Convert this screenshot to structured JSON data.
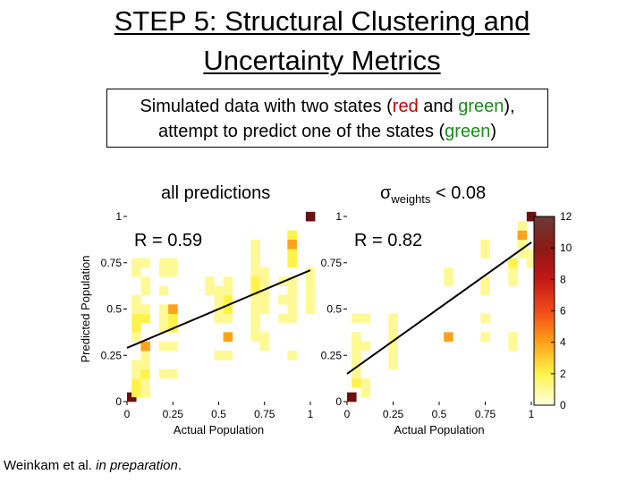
{
  "slide": {
    "title_line1": "STEP 5: Structural Clustering and",
    "title_line2": "Uncertainty Metrics",
    "subtitle": {
      "l1_a": "Simulated data with two states (",
      "l1_red": "red",
      "l1_b": " and ",
      "l1_green": "green",
      "l1_c": "),",
      "l2_a": "attempt to predict one of the states (",
      "l2_green": "green",
      "l2_b": ")"
    },
    "left_panel_title": "all predictions",
    "right_panel_title_sigma": "σ",
    "right_panel_title_sub": "weights",
    "right_panel_title_rest": " < 0.08",
    "citation_a": "Weinkam et al. ",
    "citation_b": "in preparation",
    "citation_c": "."
  },
  "colors": {
    "red": "#c00000",
    "green": "#1a8c1a"
  },
  "chart_data": [
    {
      "type": "heatmap",
      "title": "all predictions",
      "xlabel": "Actual Population",
      "ylabel": "Predicted Population",
      "xlim": [
        0,
        1
      ],
      "ylim": [
        0,
        1
      ],
      "xticks": [
        "0",
        "0.25",
        "0.5",
        "0.75",
        "1"
      ],
      "yticks": [
        "0",
        "0.25",
        "0.5",
        "0.75",
        "1"
      ],
      "annotation": "R = 0.59",
      "fit_line": {
        "x": [
          0,
          1
        ],
        "y": [
          0.29,
          0.71
        ]
      },
      "cells": [
        {
          "x": 0.0,
          "y": 0.0,
          "v": 12
        },
        {
          "x": 0.975,
          "y": 0.975,
          "v": 12
        },
        {
          "x": 0.025,
          "y": 0.025,
          "v": 2
        },
        {
          "x": 0.025,
          "y": 0.075,
          "v": 2
        },
        {
          "x": 0.025,
          "y": 0.125,
          "v": 1
        },
        {
          "x": 0.025,
          "y": 0.175,
          "v": 1
        },
        {
          "x": 0.025,
          "y": 0.325,
          "v": 1
        },
        {
          "x": 0.025,
          "y": 0.375,
          "v": 2
        },
        {
          "x": 0.025,
          "y": 0.425,
          "v": 2
        },
        {
          "x": 0.025,
          "y": 0.475,
          "v": 1
        },
        {
          "x": 0.025,
          "y": 0.525,
          "v": 1
        },
        {
          "x": 0.025,
          "y": 0.675,
          "v": 1
        },
        {
          "x": 0.025,
          "y": 0.725,
          "v": 1
        },
        {
          "x": 0.075,
          "y": 0.025,
          "v": 1
        },
        {
          "x": 0.075,
          "y": 0.075,
          "v": 1
        },
        {
          "x": 0.075,
          "y": 0.125,
          "v": 2
        },
        {
          "x": 0.075,
          "y": 0.175,
          "v": 1
        },
        {
          "x": 0.075,
          "y": 0.425,
          "v": 2
        },
        {
          "x": 0.075,
          "y": 0.475,
          "v": 1
        },
        {
          "x": 0.075,
          "y": 0.575,
          "v": 1
        },
        {
          "x": 0.075,
          "y": 0.625,
          "v": 1
        },
        {
          "x": 0.075,
          "y": 0.725,
          "v": 1
        },
        {
          "x": 0.075,
          "y": 0.225,
          "v": 1
        },
        {
          "x": 0.075,
          "y": 0.275,
          "v": 4
        },
        {
          "x": 0.175,
          "y": 0.125,
          "v": 1
        },
        {
          "x": 0.175,
          "y": 0.275,
          "v": 1
        },
        {
          "x": 0.175,
          "y": 0.375,
          "v": 1
        },
        {
          "x": 0.175,
          "y": 0.425,
          "v": 1
        },
        {
          "x": 0.175,
          "y": 0.475,
          "v": 1
        },
        {
          "x": 0.175,
          "y": 0.575,
          "v": 1
        },
        {
          "x": 0.175,
          "y": 0.675,
          "v": 1
        },
        {
          "x": 0.175,
          "y": 0.725,
          "v": 1
        },
        {
          "x": 0.225,
          "y": 0.125,
          "v": 1
        },
        {
          "x": 0.225,
          "y": 0.275,
          "v": 1
        },
        {
          "x": 0.225,
          "y": 0.375,
          "v": 2
        },
        {
          "x": 0.225,
          "y": 0.425,
          "v": 2
        },
        {
          "x": 0.225,
          "y": 0.675,
          "v": 1
        },
        {
          "x": 0.225,
          "y": 0.725,
          "v": 1
        },
        {
          "x": 0.225,
          "y": 0.475,
          "v": 4
        },
        {
          "x": 0.425,
          "y": 0.575,
          "v": 1
        },
        {
          "x": 0.425,
          "y": 0.625,
          "v": 1
        },
        {
          "x": 0.475,
          "y": 0.225,
          "v": 1
        },
        {
          "x": 0.475,
          "y": 0.425,
          "v": 1
        },
        {
          "x": 0.475,
          "y": 0.475,
          "v": 1
        },
        {
          "x": 0.475,
          "y": 0.525,
          "v": 1
        },
        {
          "x": 0.475,
          "y": 0.575,
          "v": 1
        },
        {
          "x": 0.525,
          "y": 0.225,
          "v": 1
        },
        {
          "x": 0.525,
          "y": 0.425,
          "v": 1
        },
        {
          "x": 0.525,
          "y": 0.475,
          "v": 2
        },
        {
          "x": 0.525,
          "y": 0.525,
          "v": 2
        },
        {
          "x": 0.525,
          "y": 0.575,
          "v": 1
        },
        {
          "x": 0.525,
          "y": 0.625,
          "v": 1
        },
        {
          "x": 0.525,
          "y": 0.325,
          "v": 4
        },
        {
          "x": 0.675,
          "y": 0.425,
          "v": 1
        },
        {
          "x": 0.675,
          "y": 0.475,
          "v": 1
        },
        {
          "x": 0.675,
          "y": 0.525,
          "v": 1
        },
        {
          "x": 0.675,
          "y": 0.575,
          "v": 2
        },
        {
          "x": 0.675,
          "y": 0.625,
          "v": 2
        },
        {
          "x": 0.675,
          "y": 0.675,
          "v": 1
        },
        {
          "x": 0.675,
          "y": 0.725,
          "v": 1
        },
        {
          "x": 0.675,
          "y": 0.775,
          "v": 1
        },
        {
          "x": 0.675,
          "y": 0.825,
          "v": 1
        },
        {
          "x": 0.675,
          "y": 0.325,
          "v": 1
        },
        {
          "x": 0.675,
          "y": 0.375,
          "v": 1
        },
        {
          "x": 0.725,
          "y": 0.475,
          "v": 1
        },
        {
          "x": 0.725,
          "y": 0.525,
          "v": 1
        },
        {
          "x": 0.725,
          "y": 0.575,
          "v": 1
        },
        {
          "x": 0.725,
          "y": 0.625,
          "v": 1
        },
        {
          "x": 0.725,
          "y": 0.675,
          "v": 1
        },
        {
          "x": 0.725,
          "y": 0.325,
          "v": 1
        },
        {
          "x": 0.725,
          "y": 0.275,
          "v": 1
        },
        {
          "x": 0.825,
          "y": 0.425,
          "v": 1
        },
        {
          "x": 0.825,
          "y": 0.525,
          "v": 1
        },
        {
          "x": 0.825,
          "y": 0.625,
          "v": 1
        },
        {
          "x": 0.875,
          "y": 0.725,
          "v": 2
        },
        {
          "x": 0.875,
          "y": 0.775,
          "v": 2
        },
        {
          "x": 0.875,
          "y": 0.875,
          "v": 2
        },
        {
          "x": 0.875,
          "y": 0.625,
          "v": 1
        },
        {
          "x": 0.875,
          "y": 0.575,
          "v": 1
        },
        {
          "x": 0.875,
          "y": 0.525,
          "v": 1
        },
        {
          "x": 0.875,
          "y": 0.475,
          "v": 1
        },
        {
          "x": 0.875,
          "y": 0.425,
          "v": 1
        },
        {
          "x": 0.875,
          "y": 0.225,
          "v": 1
        },
        {
          "x": 0.875,
          "y": 0.825,
          "v": 4
        },
        {
          "x": 0.975,
          "y": 0.525,
          "v": 1
        },
        {
          "x": 0.975,
          "y": 0.575,
          "v": 1
        },
        {
          "x": 0.975,
          "y": 0.625,
          "v": 1
        },
        {
          "x": 0.975,
          "y": 0.675,
          "v": 1
        },
        {
          "x": 0.975,
          "y": 0.475,
          "v": 1
        }
      ]
    },
    {
      "type": "heatmap",
      "title": "σweights < 0.08",
      "xlabel": "Actual Population",
      "xlim": [
        0,
        1
      ],
      "ylim": [
        0,
        1
      ],
      "xticks": [
        "0",
        "0.25",
        "0.5",
        "0.75",
        "1"
      ],
      "yticks": [
        "0",
        "0.25",
        "0.5",
        "0.75",
        "1"
      ],
      "annotation": "R = 0.82",
      "fit_line": {
        "x": [
          0,
          1
        ],
        "y": [
          0.15,
          0.86
        ]
      },
      "colorbar": {
        "min": 0,
        "max": 12,
        "ticks": [
          "0",
          "2",
          "4",
          "6",
          "8",
          "10",
          "12"
        ]
      },
      "cells": [
        {
          "x": 0.0,
          "y": 0.0,
          "v": 12
        },
        {
          "x": 0.975,
          "y": 0.975,
          "v": 12
        },
        {
          "x": 0.025,
          "y": 0.075,
          "v": 2
        },
        {
          "x": 0.025,
          "y": 0.125,
          "v": 1
        },
        {
          "x": 0.025,
          "y": 0.175,
          "v": 1
        },
        {
          "x": 0.025,
          "y": 0.225,
          "v": 1
        },
        {
          "x": 0.025,
          "y": 0.275,
          "v": 1
        },
        {
          "x": 0.025,
          "y": 0.325,
          "v": 1
        },
        {
          "x": 0.025,
          "y": 0.425,
          "v": 1
        },
        {
          "x": 0.075,
          "y": 0.025,
          "v": 1
        },
        {
          "x": 0.075,
          "y": 0.075,
          "v": 1
        },
        {
          "x": 0.075,
          "y": 0.425,
          "v": 1
        },
        {
          "x": 0.075,
          "y": 0.275,
          "v": 1
        },
        {
          "x": 0.225,
          "y": 0.175,
          "v": 1
        },
        {
          "x": 0.225,
          "y": 0.225,
          "v": 1
        },
        {
          "x": 0.225,
          "y": 0.275,
          "v": 1
        },
        {
          "x": 0.225,
          "y": 0.325,
          "v": 1
        },
        {
          "x": 0.225,
          "y": 0.375,
          "v": 1
        },
        {
          "x": 0.225,
          "y": 0.425,
          "v": 1
        },
        {
          "x": 0.525,
          "y": 0.325,
          "v": 4
        },
        {
          "x": 0.525,
          "y": 0.625,
          "v": 1
        },
        {
          "x": 0.525,
          "y": 0.675,
          "v": 1
        },
        {
          "x": 0.725,
          "y": 0.425,
          "v": 1
        },
        {
          "x": 0.725,
          "y": 0.575,
          "v": 1
        },
        {
          "x": 0.725,
          "y": 0.625,
          "v": 1
        },
        {
          "x": 0.725,
          "y": 0.775,
          "v": 1
        },
        {
          "x": 0.725,
          "y": 0.825,
          "v": 1
        },
        {
          "x": 0.725,
          "y": 0.325,
          "v": 1
        },
        {
          "x": 0.875,
          "y": 0.275,
          "v": 1
        },
        {
          "x": 0.875,
          "y": 0.325,
          "v": 1
        },
        {
          "x": 0.875,
          "y": 0.625,
          "v": 1
        },
        {
          "x": 0.875,
          "y": 0.675,
          "v": 1
        },
        {
          "x": 0.875,
          "y": 0.725,
          "v": 2
        },
        {
          "x": 0.925,
          "y": 0.775,
          "v": 1
        },
        {
          "x": 0.925,
          "y": 0.825,
          "v": 1
        },
        {
          "x": 0.925,
          "y": 0.875,
          "v": 4
        },
        {
          "x": 0.925,
          "y": 0.925,
          "v": 1
        },
        {
          "x": 0.975,
          "y": 0.725,
          "v": 1
        },
        {
          "x": 0.975,
          "y": 0.775,
          "v": 1
        }
      ]
    }
  ]
}
